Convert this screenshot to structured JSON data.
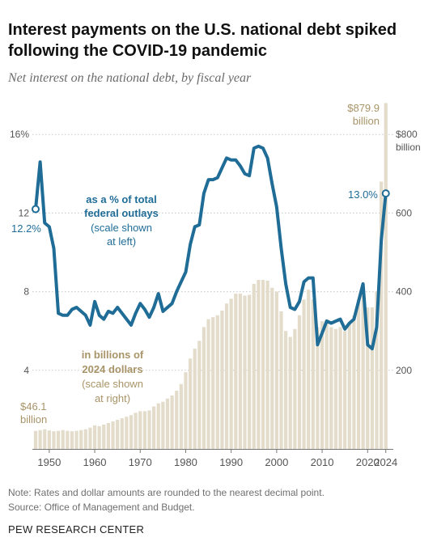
{
  "header": {
    "title": "Interest payments on the U.S. national debt spiked following the COVID-19 pandemic",
    "subtitle": "Net interest on the national debt, by fiscal year"
  },
  "footer": {
    "note": "Note: Rates and dollar amounts are rounded to the nearest decimal point.",
    "source": "Source: Office of Management and Budget.",
    "brand": "PEW RESEARCH CENTER"
  },
  "colors": {
    "line": "#1f6c97",
    "bars": "#e4dccb",
    "bar_label": "#a89468",
    "axis_text": "#555555",
    "grid": "#c8c8c8"
  },
  "chart_data": {
    "type": "bar",
    "x": [
      1947,
      1948,
      1949,
      1950,
      1951,
      1952,
      1953,
      1954,
      1955,
      1956,
      1957,
      1958,
      1959,
      1960,
      1961,
      1962,
      1963,
      1964,
      1965,
      1966,
      1967,
      1968,
      1969,
      1970,
      1971,
      1972,
      1973,
      1974,
      1975,
      1976,
      1977,
      1978,
      1979,
      1980,
      1981,
      1982,
      1983,
      1984,
      1985,
      1986,
      1987,
      1988,
      1989,
      1990,
      1991,
      1992,
      1993,
      1994,
      1995,
      1996,
      1997,
      1998,
      1999,
      2000,
      2001,
      2002,
      2003,
      2004,
      2005,
      2006,
      2007,
      2008,
      2009,
      2010,
      2011,
      2012,
      2013,
      2014,
      2015,
      2016,
      2017,
      2018,
      2019,
      2020,
      2021,
      2022,
      2023,
      2024
    ],
    "series": [
      {
        "name": "Net interest in billions of 2024 dollars",
        "axis": "right",
        "values": [
          46.1,
          48,
          50,
          47,
          45,
          46,
          48,
          46,
          45,
          46,
          48,
          50,
          54,
          60,
          58,
          62,
          66,
          70,
          74,
          78,
          82,
          86,
          92,
          96,
          96,
          98,
          108,
          116,
          120,
          128,
          136,
          148,
          165,
          195,
          230,
          255,
          275,
          310,
          330,
          335,
          340,
          352,
          370,
          382,
          395,
          395,
          390,
          392,
          420,
          430,
          430,
          428,
          410,
          400,
          350,
          300,
          285,
          305,
          340,
          380,
          405,
          380,
          310,
          325,
          330,
          310,
          305,
          310,
          300,
          320,
          340,
          380,
          420,
          360,
          360,
          400,
          680,
          879.9
        ]
      },
      {
        "name": "as a % of total federal outlays",
        "axis": "left",
        "values": [
          12.2,
          14.6,
          11.5,
          11.3,
          10.2,
          6.9,
          6.8,
          6.8,
          7.1,
          7.2,
          7.0,
          6.8,
          6.3,
          7.5,
          6.8,
          6.6,
          7.0,
          6.9,
          7.2,
          6.9,
          6.6,
          6.3,
          6.9,
          7.4,
          7.1,
          6.7,
          7.2,
          7.9,
          7.0,
          7.2,
          7.4,
          8.0,
          8.5,
          9.0,
          10.4,
          11.3,
          11.4,
          13.0,
          13.7,
          13.7,
          13.8,
          14.3,
          14.8,
          14.7,
          14.7,
          14.4,
          14.0,
          13.9,
          15.3,
          15.4,
          15.3,
          14.8,
          13.5,
          12.3,
          10.2,
          8.4,
          7.2,
          7.1,
          7.5,
          8.5,
          8.7,
          8.7,
          5.3,
          5.9,
          6.5,
          6.4,
          6.5,
          6.6,
          6.1,
          6.4,
          6.6,
          7.5,
          8.4,
          5.3,
          5.1,
          6.2,
          10.6,
          13.0
        ]
      }
    ],
    "left_axis": {
      "ticks": [
        "4",
        "8",
        "12",
        "16%"
      ],
      "values": [
        4,
        8,
        12,
        16
      ],
      "ylim": [
        0,
        17.6
      ]
    },
    "right_axis": {
      "ticks": [
        "200",
        "400",
        "600",
        "$800"
      ],
      "values": [
        200,
        400,
        600,
        800
      ],
      "extra_label": "billion",
      "ylim": [
        0,
        880
      ]
    },
    "x_ticks": [
      1950,
      1960,
      1970,
      1980,
      1990,
      2000,
      2010,
      2020,
      2024
    ],
    "annotations": {
      "line_label": [
        "as a % of total",
        "federal outlays"
      ],
      "line_scale": [
        "(scale shown",
        "at left)"
      ],
      "bar_label": [
        "in billions of",
        "2024 dollars"
      ],
      "bar_scale": [
        "(scale shown",
        "at right)"
      ],
      "first_pct": "12.2%",
      "last_pct": "13.0%",
      "first_dollar": [
        "$46.1",
        "billion"
      ],
      "last_dollar": [
        "$879.9",
        "billion"
      ]
    },
    "grid": true
  }
}
